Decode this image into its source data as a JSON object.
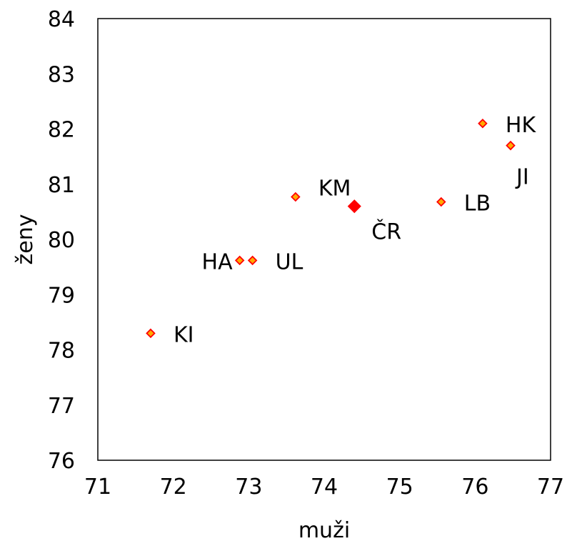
{
  "chart_data": {
    "type": "scatter",
    "title": "",
    "xlabel": "muži",
    "ylabel": "ženy",
    "xlim": [
      71,
      77
    ],
    "ylim": [
      76,
      84
    ],
    "xticks": [
      "71",
      "72",
      "73",
      "74",
      "75",
      "76",
      "77"
    ],
    "yticks": [
      "76",
      "77",
      "78",
      "79",
      "80",
      "81",
      "82",
      "83",
      "84"
    ],
    "grid": false,
    "legend": "none",
    "marker_fill": "#ffaa00",
    "marker_edge": "#ff0000",
    "highlight_color": "#ff0000",
    "points": [
      {
        "label": "HK",
        "x": 76.1,
        "y": 82.1,
        "highlight": false,
        "label_pos": "right"
      },
      {
        "label": "JI",
        "x": 76.47,
        "y": 81.7,
        "highlight": false,
        "label_pos": "below"
      },
      {
        "label": "KM",
        "x": 73.62,
        "y": 80.77,
        "highlight": false,
        "label_pos": "above-right"
      },
      {
        "label": "ČR",
        "x": 74.4,
        "y": 80.6,
        "highlight": true,
        "label_pos": "below-right"
      },
      {
        "label": "LB",
        "x": 75.55,
        "y": 80.68,
        "highlight": false,
        "label_pos": "right"
      },
      {
        "label": "HA",
        "x": 72.88,
        "y": 79.62,
        "highlight": false,
        "label_pos": "left"
      },
      {
        "label": "UL",
        "x": 73.05,
        "y": 79.62,
        "highlight": false,
        "label_pos": "right"
      },
      {
        "label": "KI",
        "x": 71.7,
        "y": 78.3,
        "highlight": false,
        "label_pos": "right"
      }
    ]
  }
}
